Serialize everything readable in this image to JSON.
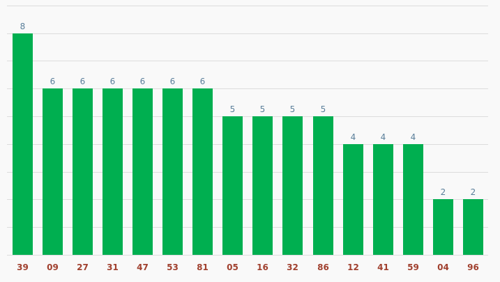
{
  "chart_data": {
    "type": "bar",
    "categories": [
      "39",
      "09",
      "27",
      "31",
      "47",
      "53",
      "81",
      "05",
      "16",
      "32",
      "86",
      "12",
      "41",
      "59",
      "04",
      "96"
    ],
    "values": [
      8,
      6,
      6,
      6,
      6,
      6,
      6,
      5,
      5,
      5,
      5,
      4,
      4,
      4,
      2,
      2
    ],
    "title": "",
    "xlabel": "",
    "ylabel": "",
    "ylim": [
      0,
      9
    ],
    "grid": true,
    "data_labels": true
  },
  "colors": {
    "bar": "#00af50",
    "value_label": "#5a7f9a",
    "tick_label": "#a0402e",
    "grid": "#dcdcdc",
    "background": "#f9f9f9"
  }
}
